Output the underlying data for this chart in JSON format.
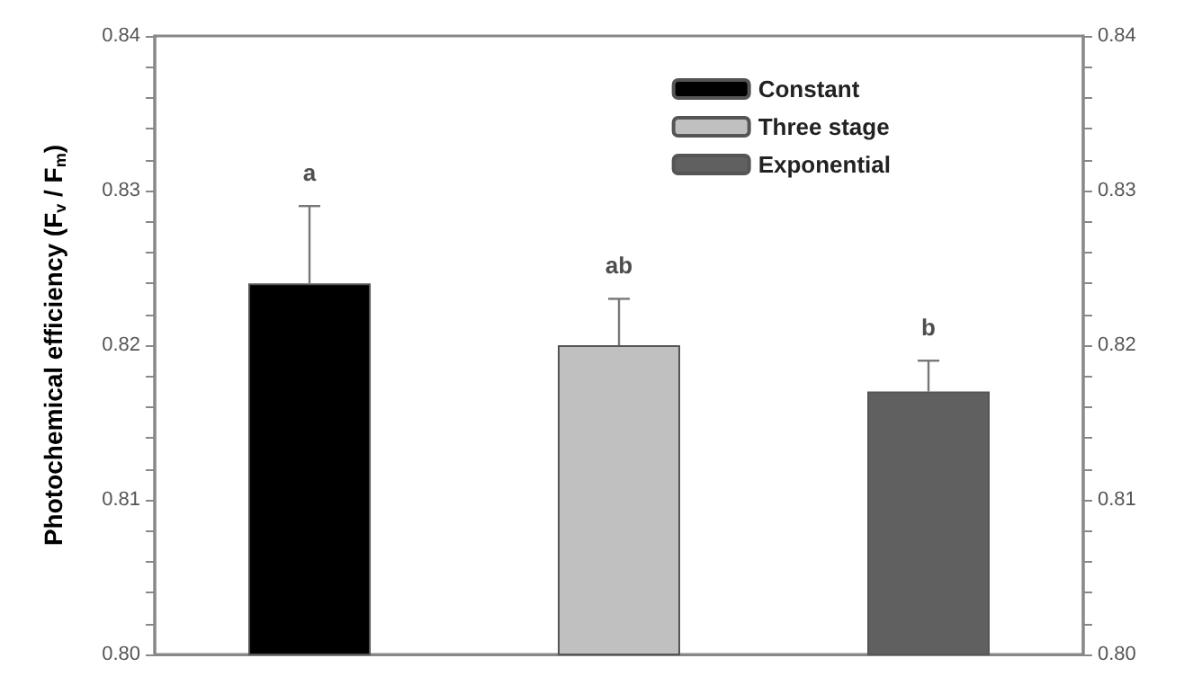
{
  "chart_data": {
    "type": "bar",
    "ylabel": "Photochemical efficiency (F$_{v}$ / F$_{m}$)",
    "categories": [
      null,
      null,
      null
    ],
    "series": [
      {
        "name": "Constant",
        "color": "#000000",
        "values": [
          0.824,
          null,
          null
        ],
        "errors": [
          [
            0.824,
            0.829
          ],
          null,
          null
        ]
      },
      {
        "name": "Three stage",
        "color": "#c0c0c0",
        "values": [
          null,
          0.82,
          null
        ],
        "errors": [
          null,
          [
            0.82,
            0.823
          ],
          null
        ]
      },
      {
        "name": "Exponential",
        "color": "#606060",
        "values": [
          null,
          null,
          0.817
        ],
        "errors": [
          null,
          null,
          [
            0.817,
            0.819
          ]
        ]
      }
    ],
    "ylim": [
      0.8,
      0.84
    ],
    "yticks": [
      {
        "value": 0.8,
        "label": "0.80"
      },
      {
        "value": 0.802,
        "label": null
      },
      {
        "value": 0.804,
        "label": null
      },
      {
        "value": 0.806,
        "label": null
      },
      {
        "value": 0.808,
        "label": null
      },
      {
        "value": 0.81,
        "label": "0.81"
      },
      {
        "value": 0.812,
        "label": null
      },
      {
        "value": 0.814,
        "label": null
      },
      {
        "value": 0.816,
        "label": null
      },
      {
        "value": 0.818,
        "label": null
      },
      {
        "value": 0.82,
        "label": "0.82"
      },
      {
        "value": 0.822,
        "label": null
      },
      {
        "value": 0.824,
        "label": null
      },
      {
        "value": 0.826,
        "label": null
      },
      {
        "value": 0.828,
        "label": null
      },
      {
        "value": 0.83,
        "label": "0.83"
      },
      {
        "value": 0.832,
        "label": null
      },
      {
        "value": 0.834,
        "label": null
      },
      {
        "value": 0.836,
        "label": null
      },
      {
        "value": 0.838,
        "label": null
      },
      {
        "value": 0.84,
        "label": "0.84"
      }
    ],
    "y2lim": [
      0.8,
      0.84
    ],
    "y2ticks": [
      {
        "value": 0.8,
        "label": "0.80"
      },
      {
        "value": 0.802,
        "label": null
      },
      {
        "value": 0.804,
        "label": null
      },
      {
        "value": 0.806,
        "label": null
      },
      {
        "value": 0.808,
        "label": null
      },
      {
        "value": 0.81,
        "label": "0.81"
      },
      {
        "value": 0.812,
        "label": null
      },
      {
        "value": 0.814,
        "label": null
      },
      {
        "value": 0.816,
        "label": null
      },
      {
        "value": 0.818,
        "label": null
      },
      {
        "value": 0.82,
        "label": "0.82"
      },
      {
        "value": 0.822,
        "label": null
      },
      {
        "value": 0.824,
        "label": null
      },
      {
        "value": 0.826,
        "label": null
      },
      {
        "value": 0.828,
        "label": null
      },
      {
        "value": 0.83,
        "label": "0.83"
      },
      {
        "value": 0.832,
        "label": null
      },
      {
        "value": 0.834,
        "label": null
      },
      {
        "value": 0.836,
        "label": null
      },
      {
        "value": 0.838,
        "label": null
      },
      {
        "value": 0.84,
        "label": "0.84"
      }
    ],
    "annotations": [
      "a",
      "ab",
      "b"
    ],
    "legend": "top right",
    "grid": false
  }
}
